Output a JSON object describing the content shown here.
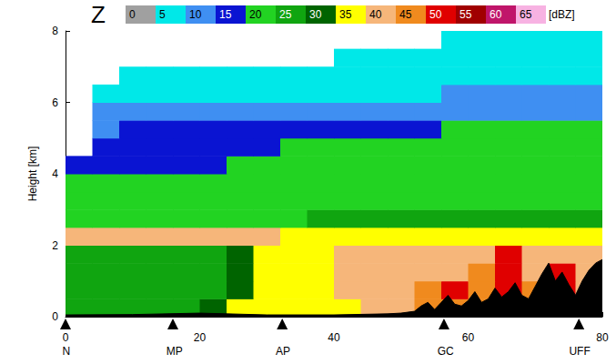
{
  "chart_data": {
    "type": "heatmap",
    "panel_label": "Z",
    "ylabel": "Height [km]",
    "xlim": [
      0,
      80
    ],
    "xticks": [
      0,
      20,
      40,
      60,
      80
    ],
    "ylim": [
      0,
      8
    ],
    "yticks": [
      0,
      2,
      4,
      6,
      8
    ],
    "grid": false,
    "x": [
      2,
      6,
      10,
      14,
      18,
      22,
      26,
      30,
      34,
      38,
      42,
      46,
      50,
      54,
      58,
      62,
      66,
      70,
      74,
      78
    ],
    "y": [
      0.25,
      0.75,
      1.25,
      1.75,
      2.25,
      2.75,
      3.25,
      3.75,
      4.25,
      4.75,
      5.25,
      5.75,
      6.25,
      6.75,
      7.25,
      7.75
    ],
    "z": [
      [
        25,
        25,
        25,
        25,
        25,
        30,
        35,
        35,
        35,
        35,
        35,
        40,
        40,
        45,
        45,
        45,
        45,
        45,
        45,
        45
      ],
      [
        25,
        25,
        25,
        25,
        25,
        25,
        30,
        35,
        35,
        35,
        40,
        40,
        40,
        45,
        50,
        45,
        50,
        45,
        50,
        40
      ],
      [
        25,
        25,
        25,
        25,
        25,
        25,
        30,
        35,
        35,
        35,
        40,
        40,
        40,
        40,
        40,
        45,
        50,
        40,
        50,
        40
      ],
      [
        25,
        25,
        25,
        25,
        25,
        25,
        30,
        35,
        35,
        35,
        40,
        40,
        40,
        40,
        40,
        40,
        50,
        40,
        40,
        40
      ],
      [
        40,
        40,
        40,
        40,
        40,
        40,
        40,
        40,
        35,
        35,
        35,
        35,
        35,
        35,
        35,
        35,
        35,
        35,
        35,
        35
      ],
      [
        20,
        20,
        20,
        20,
        20,
        20,
        20,
        20,
        20,
        25,
        25,
        25,
        25,
        25,
        25,
        25,
        25,
        25,
        25,
        25
      ],
      [
        20,
        20,
        20,
        20,
        20,
        20,
        20,
        20,
        20,
        20,
        20,
        20,
        20,
        20,
        20,
        20,
        20,
        20,
        20,
        20
      ],
      [
        20,
        20,
        20,
        20,
        20,
        20,
        20,
        20,
        20,
        20,
        20,
        20,
        20,
        20,
        20,
        20,
        20,
        20,
        20,
        20
      ],
      [
        15,
        15,
        15,
        15,
        15,
        15,
        20,
        20,
        20,
        20,
        20,
        20,
        20,
        20,
        20,
        20,
        20,
        20,
        20,
        20
      ],
      [
        null,
        15,
        15,
        15,
        15,
        15,
        15,
        15,
        20,
        20,
        20,
        20,
        20,
        20,
        20,
        20,
        20,
        20,
        20,
        20
      ],
      [
        null,
        10,
        15,
        15,
        15,
        15,
        15,
        15,
        15,
        15,
        15,
        15,
        15,
        15,
        20,
        20,
        20,
        20,
        20,
        20
      ],
      [
        null,
        10,
        10,
        10,
        10,
        10,
        10,
        10,
        10,
        10,
        10,
        10,
        10,
        10,
        10,
        10,
        10,
        10,
        10,
        10
      ],
      [
        null,
        5,
        5,
        5,
        5,
        5,
        5,
        5,
        5,
        5,
        5,
        5,
        5,
        5,
        10,
        10,
        10,
        10,
        10,
        10
      ],
      [
        null,
        null,
        5,
        5,
        5,
        5,
        5,
        5,
        5,
        5,
        5,
        5,
        5,
        5,
        5,
        5,
        5,
        5,
        5,
        5
      ],
      [
        null,
        null,
        null,
        null,
        null,
        null,
        null,
        null,
        null,
        null,
        5,
        5,
        5,
        5,
        5,
        5,
        5,
        5,
        5,
        5
      ],
      [
        null,
        null,
        null,
        null,
        null,
        null,
        null,
        null,
        null,
        null,
        null,
        null,
        null,
        null,
        5,
        5,
        5,
        5,
        5,
        5
      ]
    ],
    "colorbar": {
      "label": "[dBZ]",
      "ticks": [
        0,
        5,
        10,
        15,
        20,
        25,
        30,
        35,
        40,
        45,
        50,
        55,
        60,
        65
      ],
      "colors": [
        "#a0a0a0",
        "#00e8e8",
        "#3f8ff2",
        "#0a14d2",
        "#22d322",
        "#10a510",
        "#006400",
        "#ffff00",
        "#f6b67a",
        "#f08a1e",
        "#e00000",
        "#a00000",
        "#c0156a",
        "#f7b2e2"
      ]
    },
    "terrain": {
      "x": [
        0,
        10,
        20,
        30,
        40,
        48,
        50,
        52,
        53,
        54,
        55,
        56,
        57,
        58,
        59,
        60,
        61,
        62,
        63,
        64,
        65,
        66,
        67,
        68,
        69,
        70,
        71,
        72,
        73,
        74,
        75,
        76,
        77,
        78,
        79,
        80
      ],
      "height": [
        0.05,
        0.06,
        0.1,
        0.05,
        0.05,
        0.08,
        0.1,
        0.15,
        0.3,
        0.4,
        0.2,
        0.4,
        0.6,
        0.35,
        0.3,
        0.45,
        0.7,
        0.4,
        0.5,
        0.8,
        0.55,
        0.7,
        0.95,
        0.6,
        0.5,
        0.85,
        1.2,
        1.5,
        1.0,
        1.25,
        0.9,
        0.6,
        1.0,
        1.3,
        1.5,
        1.6
      ],
      "color": "#000000"
    },
    "stations": {
      "names": [
        "N",
        "MP",
        "AP",
        "GC",
        "UFF"
      ],
      "x": [
        0,
        16,
        32.3,
        56.4,
        76.5
      ],
      "marker": "triangle",
      "color": "#000000"
    }
  }
}
